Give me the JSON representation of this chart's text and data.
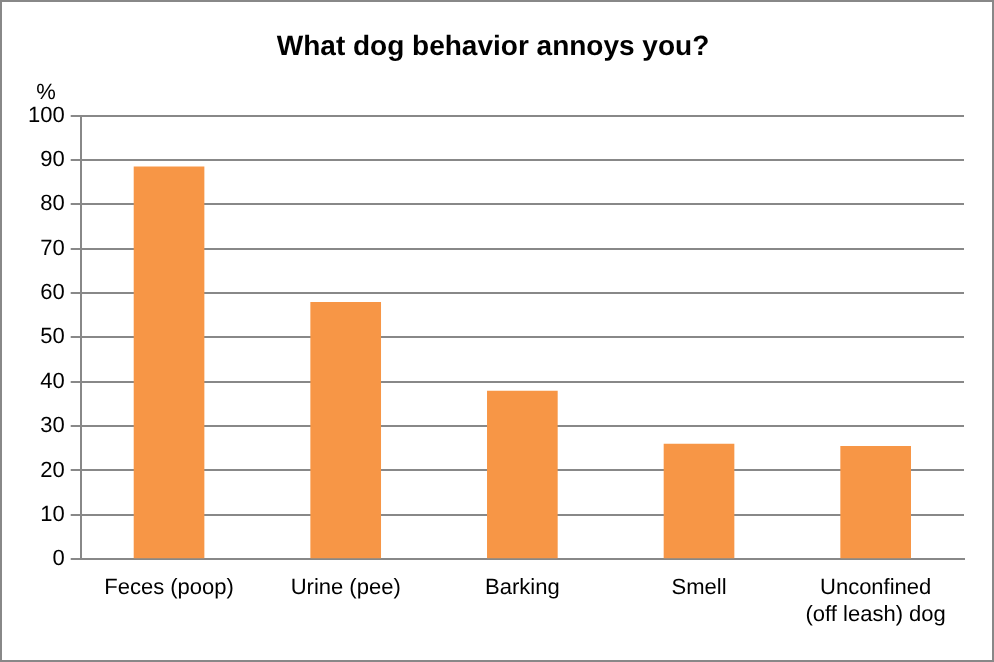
{
  "chart_data": {
    "type": "bar",
    "title": "What dog behavior annoys you?",
    "ylabel": "%",
    "categories": [
      "Feces (poop)",
      "Urine (pee)",
      "Barking",
      "Smell",
      "Unconfined (off leash) dog"
    ],
    "values": [
      88.5,
      58,
      38,
      26,
      25.5
    ],
    "color": "#f79646",
    "ylim": [
      0,
      100
    ],
    "yticks": [
      0,
      10,
      20,
      30,
      40,
      50,
      60,
      70,
      80,
      90,
      100
    ],
    "grid": "y",
    "legend": false
  }
}
